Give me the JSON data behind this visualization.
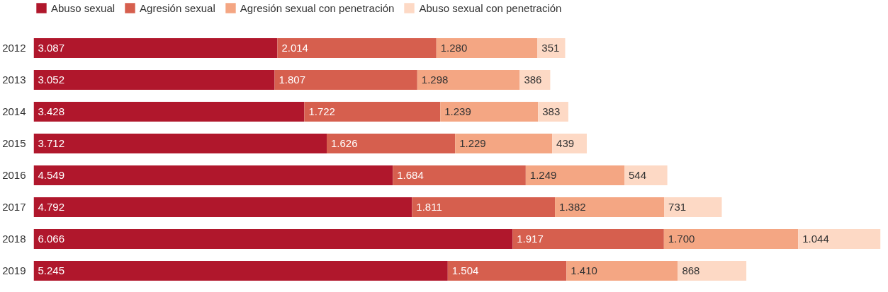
{
  "chart_data": {
    "type": "bar",
    "orientation": "horizontal",
    "stacked": true,
    "legend": "top left",
    "grid": false,
    "categories": [
      "2012",
      "2013",
      "2014",
      "2015",
      "2016",
      "2017",
      "2018",
      "2019"
    ],
    "series": [
      {
        "name": "Abuso sexual",
        "color": "#b0172c",
        "values": [
          3087,
          3052,
          3428,
          3712,
          4549,
          4792,
          6066,
          5245
        ],
        "value_labels": [
          "3.087",
          "3.052",
          "3.428",
          "3.712",
          "4.549",
          "4.792",
          "6.066",
          "5.245"
        ]
      },
      {
        "name": "Agresión sexual",
        "color": "#d65f4e",
        "values": [
          2014,
          1807,
          1722,
          1626,
          1684,
          1811,
          1917,
          1504
        ],
        "value_labels": [
          "2.014",
          "1.807",
          "1.722",
          "1.626",
          "1.684",
          "1.811",
          "1.917",
          "1.504"
        ]
      },
      {
        "name": "Agresión sexual con penetración",
        "color": "#f4a683",
        "values": [
          1280,
          1298,
          1239,
          1229,
          1249,
          1382,
          1700,
          1410
        ],
        "value_labels": [
          "1.280",
          "1.298",
          "1.239",
          "1.229",
          "1.249",
          "1.382",
          "1.700",
          "1.410"
        ]
      },
      {
        "name": "Abuso sexual con penetración",
        "color": "#fdd9c5",
        "values": [
          351,
          386,
          383,
          439,
          544,
          731,
          1044,
          868
        ],
        "value_labels": [
          "351",
          "386",
          "383",
          "439",
          "544",
          "731",
          "1.044",
          "868"
        ]
      }
    ]
  }
}
